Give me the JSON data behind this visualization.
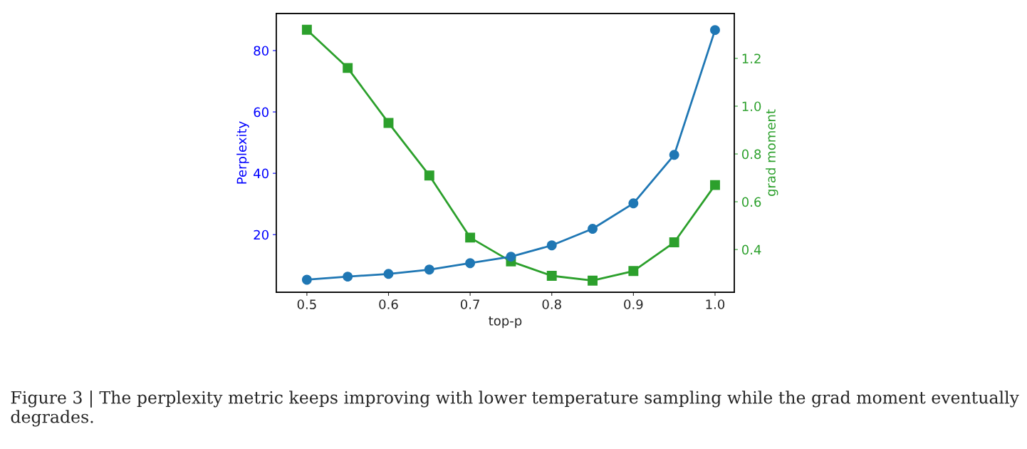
{
  "chart_data": {
    "type": "line",
    "xlabel": "top-p",
    "ylabel": "Perplexity",
    "y2label": "grad moment",
    "x": [
      0.5,
      0.55,
      0.6,
      0.65,
      0.7,
      0.75,
      0.8,
      0.85,
      0.9,
      0.95,
      1.0
    ],
    "series": [
      {
        "color": "#1f77b4",
        "marker": "circle",
        "values": [
          5.3,
          6.3,
          7.2,
          8.6,
          10.7,
          12.8,
          16.5,
          21.9,
          30.2,
          46,
          86.7
        ]
      },
      {
        "color": "#2ca02c",
        "marker": "square",
        "axis": "y2",
        "values": [
          1.32,
          1.16,
          0.93,
          0.71,
          0.45,
          0.35,
          0.29,
          0.27,
          0.31,
          0.43,
          0.67
        ]
      }
    ],
    "xlim": [
      0.4625,
      1.0236
    ],
    "xticks": [
      {
        "value": 0.5,
        "label": "0.5"
      },
      {
        "value": 0.6,
        "label": "0.6"
      },
      {
        "value": 0.7,
        "label": "0.7"
      },
      {
        "value": 0.8,
        "label": "0.8"
      },
      {
        "value": 0.9,
        "label": "0.9"
      },
      {
        "value": 1.0,
        "label": "1.0"
      }
    ],
    "ylim": [
      1.2,
      92.1
    ],
    "yticks": [
      20,
      40,
      60,
      80
    ],
    "y2lim": [
      0.221,
      1.388
    ],
    "y2ticks": [
      {
        "value": 0.4,
        "label": "0.4"
      },
      {
        "value": 0.6,
        "label": "0.6"
      },
      {
        "value": 0.8,
        "label": "0.8"
      },
      {
        "value": 1.0,
        "label": "1.0"
      },
      {
        "value": 1.2,
        "label": "1.2"
      }
    ],
    "grid": false,
    "legend": false,
    "annotations": [
      "Figure 3 | The perplexity metric keeps improving with lower temperature sampling while the grad moment eventually degrades."
    ]
  }
}
